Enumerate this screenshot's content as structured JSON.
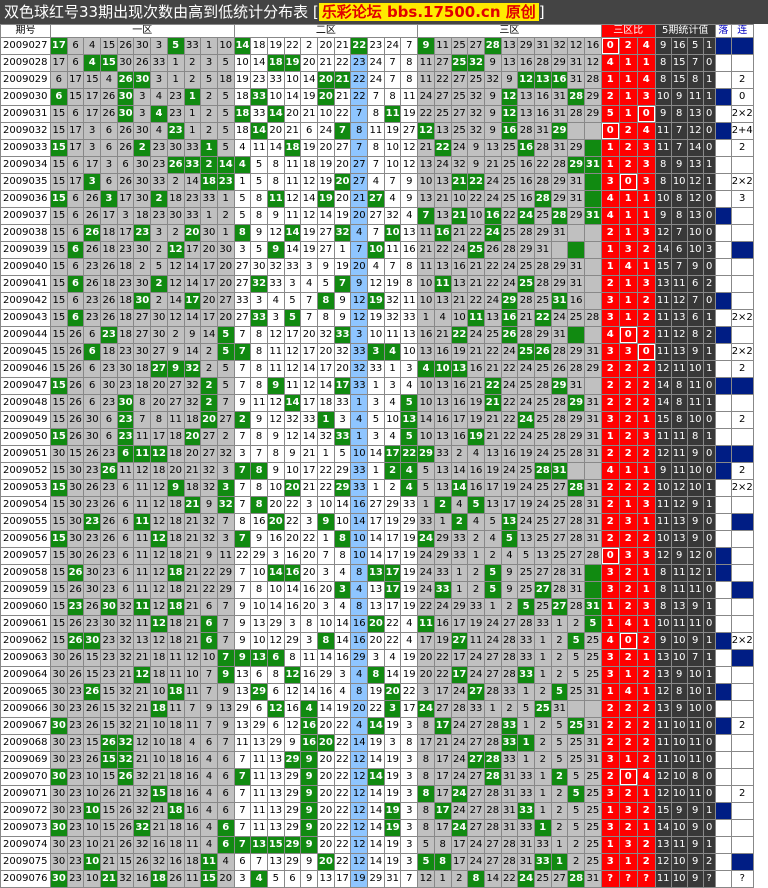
{
  "title": {
    "main": "双色球红号33期出现次数由高到低统计分布表 [",
    "site": "乐彩论坛 bbs.17500.cn 原创",
    "close": "]"
  },
  "header": {
    "period": "期号",
    "zone1": "一区",
    "zone2": "二区",
    "zone3": "三区",
    "ratio": "三区比",
    "stat5": "5期统计值",
    "luo": "落",
    "lian": "连"
  },
  "rows": [
    [
      "2009027",
      "17 6 4 15 26 30 3 5 33 1 10 14 18 19 22 2 20 21 22 23 24 7 9 11 25 27 28 13 29 31 32 12 16",
      "0 2 4",
      "9 16 5 1",
      ""
    ],
    [
      "2009028",
      "17 6 4 15 30 26 33 1 2 3 5 10 14 18 19 20 21 22 23 24 7 8 11 27 25 32 9 13 16 28 29 31 12",
      "4 1 1",
      "8 15 7 0",
      ""
    ],
    [
      "2009029",
      "6 17 15 4 26 30 3 1 2 5 18 19 23 33 10 14 20 21 22 24 7 8 11 22 27 25 32 9 12 13 16 31 28 29",
      "1 1 4",
      "8 15 8 1",
      "2"
    ],
    [
      "2009030",
      "6 15 17 26 30 3 4 23 1 2 5 18 33 10 14 19 20 21 22 7 8 11 24 27 25 32 9 12 13 16 31 28 29",
      "2 1 3",
      "10 9 11 1",
      "0"
    ],
    [
      "2009031",
      "15 6 17 26 30 3 4 23 1 2 5 18 33 14 20 21 10 22 7 8 11 19 22 25 27 32 9 12 13 16 31 28 29",
      "5 1 0",
      "9 8 13 0",
      "2×2"
    ],
    [
      "2009032",
      "15 17 3 6 26 30 4 23 1 2 5 18 14 20 21 6 24 7 8 11 19 27 12 13 25 32 9 16 28 31 29",
      "0 2 4",
      "11 7 12 0",
      "2+4"
    ],
    [
      "2009033",
      "15 17 3 6 26 2 23 30 33 1 5 4 11 14 18 19 20 27 7 8 10 12 21 22 24 9 13 25 16 28 31 29",
      "1 2 3",
      "11 7 14 0",
      "2"
    ],
    [
      "2009034",
      "15 6 17 3 6 30 23 26 33 2 14 4 5 8 11 18 19 20 27 7 10 12 13 24 32 9 21 25 16 22 28 29 31",
      "1 2 3",
      "8 9 13 1",
      ""
    ],
    [
      "2009035",
      "15 17 3 6 26 30 33 2 14 18 23 1 5 8 11 12 19 20 27 4 7 9 10 13 21 22 24 25 16 28 29 31",
      "3 0 3",
      "8 10 12 1",
      "2×2"
    ],
    [
      "2009036",
      "15 6 26 3 17 30 2 18 23 33 1 5 8 11 12 14 19 20 21 27 4 9 13 21 10 22 24 25 16 28 29 31",
      "4 1 1",
      "10 8 12 0",
      "3"
    ],
    [
      "2009037",
      "15 6 26 17 3 18 23 30 33 1 2 5 8 9 11 12 14 19 20 27 32 4 7 13 21 10 16 22 24 25 28 29 31",
      "4 1 1",
      "9 8 13 0",
      ""
    ],
    [
      "2009038",
      "15 6 26 18 17 23 3 2 20 30 1 8 9 12 14 19 27 32 4 7 10 13 11 16 21 22 24 25 28 29 31",
      "2 1 3",
      "12 7 10 0",
      ""
    ],
    [
      "2009039",
      "15 6 26 18 23 30 2 12 17 20 30 3 5 9 14 19 27 1 7 10 11 16 21 22 24 25 26 28 29 31",
      "1 3 2",
      "14 6 10 3",
      ""
    ],
    [
      "2009040",
      "15 6 23 26 18 2 5 12 14 17 20 27 30 32 33 3 9 19 20 4 7 8 11 13 16 21 22 24 25 28 29 31",
      "1 4 1",
      "15 7 9 0",
      ""
    ],
    [
      "2009041",
      "15 6 26 18 23 30 2 12 14 17 20 27 32 33 3 4 5 7 9 12 19 8 10 11 13 21 22 24 25 28 29 31",
      "2 1 3",
      "13 11 6 2",
      ""
    ],
    [
      "2009042",
      "15 6 23 26 18 30 2 14 17 20 27 33 3 4 5 7 8 9 12 19 32 11 10 13 21 22 24 29 28 25 31 16",
      "3 1 2",
      "11 12 7 0",
      ""
    ],
    [
      "2009043",
      "15 6 23 26 18 27 30 12 14 17 20 27 33 3 5 7 8 9 12 19 32 33 1 4 10 11 13 16 21 22 24 25 28 29 31",
      "3 1 2",
      "11 13 6 1",
      "2×2"
    ],
    [
      "2009044",
      "15 26 6 23 18 27 30 2 9 14 5 7 8 12 17 20 32 33 3 10 11 13 16 21 22 24 25 26 28 29 31",
      "4 0 2",
      "11 12 8 2",
      ""
    ],
    [
      "2009045",
      "15 26 6 18 23 30 27 9 14 2 5 7 8 11 12 17 20 32 33 3 4 10 13 16 19 21 22 24 25 26 28 29 31",
      "3 3 0",
      "11 13 9 1",
      "2×2"
    ],
    [
      "2009046",
      "15 26 6 23 30 18 27 9 32 2 5 7 8 11 12 14 17 20 32 33 1 3 4 10 13 16 21 22 24 25 26 28 29 31",
      "2 2 2",
      "12 11 10 1",
      "2"
    ],
    [
      "2009047",
      "15 26 6 30 23 18 20 27 32 2 5 7 8 9 11 12 14 17 33 1 3 4 10 13 16 21 22 24 25 28 29 31",
      "2 2 2",
      "14 8 11 0",
      ""
    ],
    [
      "2009048",
      "15 26 6 23 30 8 20 27 32 2 7 9 11 12 14 17 18 33 1 3 4 5 10 13 16 19 21 22 24 25 28 29 31",
      "2 2 2",
      "14 8 11 1",
      ""
    ],
    [
      "2009049",
      "15 26 30 6 23 7 8 11 18 20 27 2 9 12 32 33 1 3 4 5 10 13 14 16 17 19 21 22 24 25 28 29 31",
      "3 2 1",
      "15 8 10 0",
      "2"
    ],
    [
      "2009050",
      "15 26 30 6 23 11 17 18 20 27 2 7 8 9 12 14 32 33 1 3 4 5 10 13 16 19 21 22 24 25 28 29 31",
      "1 2 3",
      "11 11 8 1",
      ""
    ],
    [
      "2009051",
      "30 15 26 23 6 11 12 18 20 27 32 3 7 8 9 21 1 5 10 14 17 22 29 33 2 4 13 16 19 24 25 28 31",
      "2 2 2",
      "12 11 9 0",
      ""
    ],
    [
      "2009052",
      "15 30 23 26 11 12 18 20 21 32 3 7 8 9 10 17 22 29 33 1 2 4 5 13 14 16 19 24 25 28 31",
      "4 1 1",
      "9 11 10 0",
      "2"
    ],
    [
      "2009053",
      "15 30 26 23 6 11 12 9 18 32 3 7 8 10 20 21 22 29 33 1 2 4 5 13 14 16 17 19 24 25 27 28 31",
      "2 2 2",
      "10 12 10 1",
      "2×2"
    ],
    [
      "2009054",
      "15 30 23 26 6 11 12 18 21 9 32 7 8 20 22 3 10 14 16 27 29 33 1 2 4 5 13 17 19 24 25 28 31",
      "2 1 3",
      "11 12 9 1",
      ""
    ],
    [
      "2009055",
      "15 30 23 26 6 11 12 18 21 32 7 8 16 20 22 3 9 10 14 17 19 29 33 1 2 4 5 13 24 25 27 28 31",
      "2 3 1",
      "11 13 9 0",
      ""
    ],
    [
      "2009056",
      "15 30 23 26 6 11 12 18 21 32 3 7 9 16 20 22 1 8 10 14 17 19 24 29 33 2 4 5 13 25 27 28 31",
      "2 2 2",
      "10 13 9 0",
      ""
    ],
    [
      "2009057",
      "15 30 26 23 6 11 12 18 21 9 11 22 29 3 16 20 7 8 10 14 17 19 24 29 33 1 2 4 5 13 25 27 28 31",
      "0 3 3",
      "12 9 12 0",
      ""
    ],
    [
      "2009058",
      "15 26 30 23 6 11 12 18 21 22 29 7 10 14 16 20 3 4 8 13 17 19 24 33 1 2 5 9 25 27 28 31",
      "3 2 1",
      "8 11 12 1",
      ""
    ],
    [
      "2009059",
      "15 26 30 23 6 11 12 18 21 22 29 7 8 10 14 16 20 3 4 13 17 19 24 33 1 2 5 9 25 27 28 31",
      "3 2 1",
      "8 11 11 0",
      ""
    ],
    [
      "2009060",
      "15 23 26 30 32 11 12 18 21 6 7 9 10 14 16 20 3 4 8 13 17 19 22 24 29 33 1 2 5 25 27 28 31",
      "1 2 3",
      "8 13 9 1",
      ""
    ],
    [
      "2009061",
      "15 26 23 30 32 11 12 18 21 6 7 9 13 29 3 8 10 14 16 20 22 4 11 16 17 19 24 27 28 33 1 2 5 25 31",
      "1 4 1",
      "10 11 11 0",
      ""
    ],
    [
      "2009062",
      "15 26 30 23 32 13 12 18 21 6 7 9 10 12 29 3 8 14 16 20 22 4 17 19 27 11 24 28 33 1 2 5 25 31",
      "4 0 2",
      "9 10 9 1",
      "2×2"
    ],
    [
      "2009063",
      "30 26 15 23 32 21 18 11 12 10 7 9 13 6 8 11 14 16 29 3 4 19 20 22 17 24 27 28 33 1 2 5 25 31",
      "3 2 1",
      "13 10 7 1",
      ""
    ],
    [
      "2009064",
      "30 26 15 23 21 12 18 11 10 7 9 13 6 8 12 16 29 3 4 8 14 19 20 22 17 24 27 28 33 1 2 5 25 31",
      "3 1 2",
      "13 9 10 1",
      ""
    ],
    [
      "2009065",
      "30 23 26 15 32 21 10 18 11 7 9 13 29 6 12 14 16 4 8 19 20 22 3 17 24 27 28 33 1 2 5 25 31",
      "1 4 1",
      "12 8 10 1",
      ""
    ],
    [
      "2009066",
      "30 23 26 15 32 21 18 11 7 9 13 29 6 12 16 4 14 19 20 22 3 17 24 27 28 33 1 2 5 25 31",
      "2 2 2",
      "13 9 10 0",
      ""
    ],
    [
      "2009067",
      "30 23 26 15 32 21 10 18 11 7 9 13 29 6 12 16 20 22 4 14 19 3 8 17 24 27 28 33 1 2 5 25 31",
      "2 2 2",
      "11 10 11 0",
      "2"
    ],
    [
      "2009068",
      "30 23 15 26 32 12 10 18 4 6 7 11 13 29 9 16 20 22 14 19 3 8 17 21 24 27 28 33 1 2 5 25 31",
      "2 2 2",
      "11 10 11 0",
      ""
    ],
    [
      "2009069",
      "30 23 26 15 32 21 10 18 16 4 6 7 11 13 29 9 20 22 12 14 19 3 8 17 24 27 28 33 1 2 5 25 31",
      "3 1 2",
      "11 10 11 0",
      ""
    ],
    [
      "2009070",
      "30 23 10 15 26 32 21 18 16 4 6 7 11 13 29 9 20 22 12 14 19 3 8 17 24 27 28 31 33 1 2 5 25",
      "2 0 4",
      "12 10 8 0",
      ""
    ],
    [
      "2009071",
      "30 23 10 26 21 32 15 18 16 4 6 7 11 13 29 9 20 22 12 14 19 3 8 17 24 27 28 31 33 1 2 5 25",
      "3 2 1",
      "12 10 11 0",
      "2"
    ],
    [
      "2009072",
      "30 23 10 15 26 32 21 18 16 4 6 7 11 13 29 9 20 22 12 14 19 3 8 17 24 27 28 31 33 1 2 5 25",
      "1 3 2",
      "15 9 9 1",
      ""
    ],
    [
      "2009073",
      "30 23 10 15 26 32 21 18 16 4 6 7 11 13 29 9 20 22 12 14 19 3 8 17 24 27 28 31 33 1 2 5 25",
      "3 2 1",
      "14 10 9 0",
      ""
    ],
    [
      "2009074",
      "30 23 10 21 26 32 16 18 11 4 6 7 13 15 29 9 20 22 12 14 19 3 5 8 17 24 27 28 31 33 1 2 25",
      "1 3 2",
      "13 11 9 1",
      ""
    ],
    [
      "2009075",
      "30 23 10 21 15 26 32 16 18 11 4 6 7 13 29 9 20 22 12 14 19 3 5 8 17 24 27 28 31 33 1 2 25",
      "3 1 2",
      "12 10 9 2",
      ""
    ],
    [
      "2009076",
      "30 23 10 21 32 16 18 26 11 15 20 3 4 5 6 9 13 17 19 29 31 7 12 1 2 8 14 22 24 25 27 28 31 33",
      "? ? ?",
      "11 10 9 ?",
      "?"
    ]
  ],
  "colors": {
    "title_bg": "#444444",
    "green": "#118a11",
    "red": "#ff0000",
    "gray": "#c0c0c0",
    "dark": "#383838",
    "navy": "#001d84",
    "blue": "#8ec5ff"
  }
}
